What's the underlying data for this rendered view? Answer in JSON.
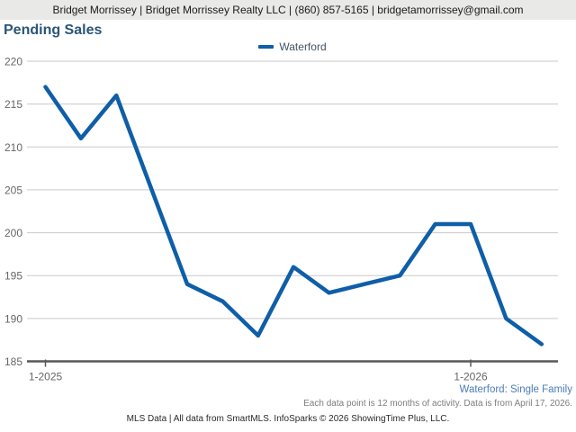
{
  "header": {
    "text": "Bridget Morrissey | Bridget Morrissey Realty LLC | (860) 857-5165 | bridgetamorrissey@gmail.com"
  },
  "title": "Pending Sales",
  "legend": {
    "label": "Waterford"
  },
  "chart_data": {
    "type": "line",
    "title": "Pending Sales",
    "x": [
      "1-2025",
      "2-2025",
      "3-2025",
      "4-2025",
      "5-2025",
      "6-2025",
      "7-2025",
      "8-2025",
      "9-2025",
      "10-2025",
      "11-2025",
      "12-2025",
      "1-2026",
      "2-2026",
      "3-2026"
    ],
    "series": [
      {
        "name": "Waterford",
        "values": [
          217,
          211,
          216,
          205,
          194,
          192,
          188,
          196,
          193,
          194,
          195,
          201,
          201,
          190,
          187
        ]
      }
    ],
    "ylim": [
      185,
      220
    ],
    "y_ticks": [
      185,
      190,
      195,
      200,
      205,
      210,
      215,
      220
    ],
    "x_ticks": [
      {
        "index": 0,
        "label": "1-2025"
      },
      {
        "index": 12,
        "label": "1-2026"
      }
    ],
    "grid": "horizontal",
    "legend_position": "top-center"
  },
  "notes": {
    "series_note": "Waterford: Single Family",
    "frequency_note": "Each data point is 12 months of activity. Data is from April 17, 2026.",
    "attribution": "MLS Data | All data from SmartMLS. InfoSparks © 2026 ShowingTime Plus, LLC."
  },
  "colors": {
    "series_line": "#0e5ea8",
    "title": "#2a5577",
    "header_bg": "#e9e9e7",
    "grid": "#c9c9c9",
    "axis": "#585858",
    "axis_label": "#666666",
    "series_note": "#4b7cb8",
    "frequency_note": "#7d7d7d"
  }
}
